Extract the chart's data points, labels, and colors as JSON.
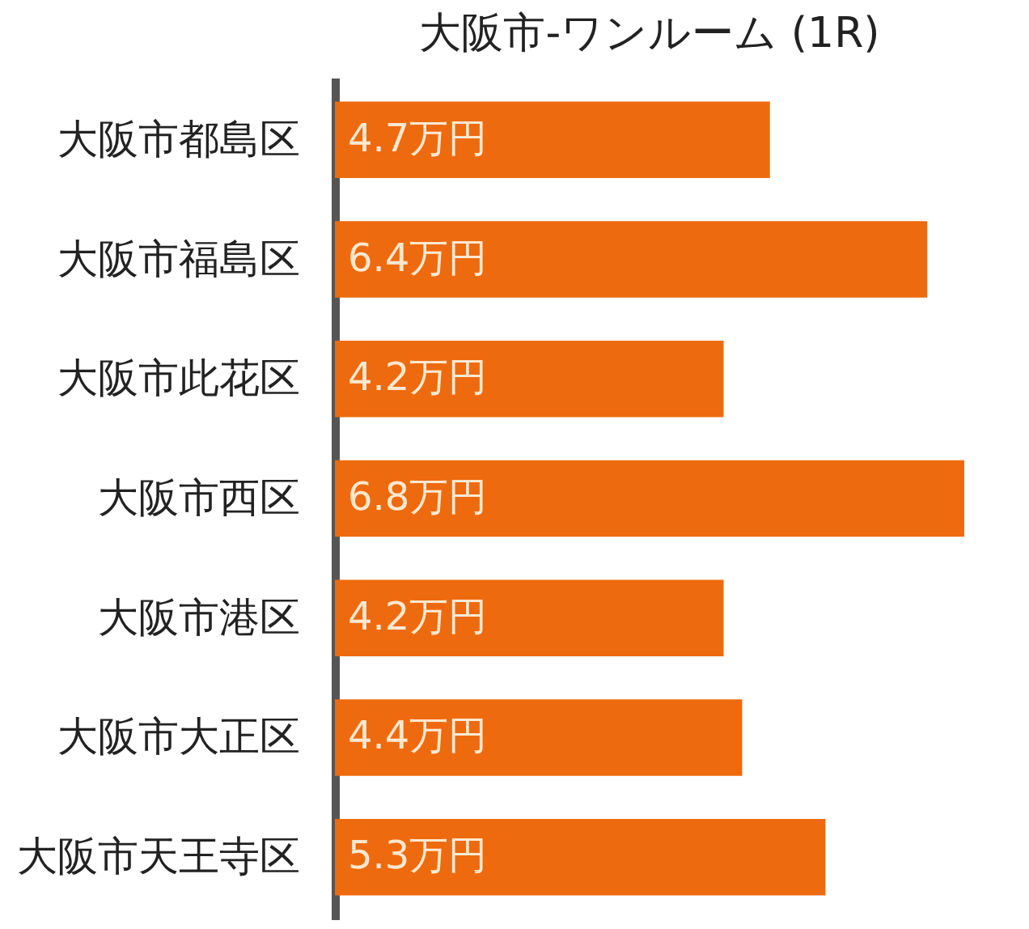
{
  "chart_data": {
    "type": "bar",
    "orientation": "horizontal",
    "title": "大阪市-ワンルーム (1R)",
    "categories": [
      "大阪市都島区",
      "大阪市福島区",
      "大阪市此花区",
      "大阪市西区",
      "大阪市港区",
      "大阪市大正区",
      "大阪市天王寺区"
    ],
    "values": [
      4.7,
      6.4,
      4.2,
      6.8,
      4.2,
      4.4,
      5.3
    ],
    "value_labels": [
      "4.7万円",
      "6.4万円",
      "4.2万円",
      "6.8万円",
      "4.2万円",
      "4.4万円",
      "5.3万円"
    ],
    "color": "#ee6a0e",
    "tick_labels": "y"
  }
}
